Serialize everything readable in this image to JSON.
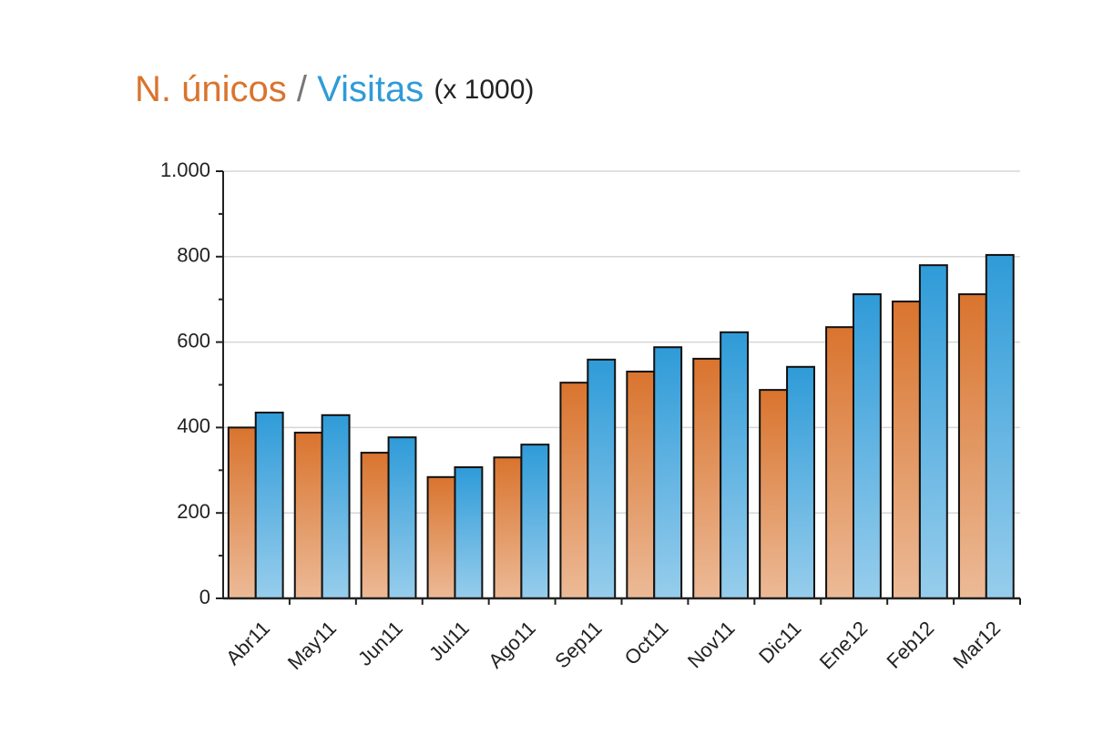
{
  "chart_data": {
    "type": "bar",
    "title_separator": "/",
    "unit_note": "(x 1000)",
    "categories": [
      "Abr11",
      "May11",
      "Jun11",
      "Jul11",
      "Ago11",
      "Sep11",
      "Oct11",
      "Nov11",
      "Dic11",
      "Ene12",
      "Feb12",
      "Mar12"
    ],
    "series": [
      {
        "name": "N. únicos",
        "color": "#d9742e",
        "values": [
          400,
          388,
          341,
          284,
          330,
          505,
          531,
          561,
          488,
          635,
          695,
          712
        ]
      },
      {
        "name": "Visitas",
        "color": "#2f9bd8",
        "values": [
          435,
          429,
          377,
          307,
          360,
          559,
          588,
          623,
          542,
          712,
          780,
          804
        ]
      }
    ],
    "ylim": [
      0,
      1000
    ],
    "yticks": [
      0,
      200,
      400,
      600,
      800,
      {
        "value": 1000,
        "label": "1.000"
      }
    ],
    "yminorticks": [
      100,
      300,
      500,
      700,
      900
    ],
    "grid": true
  }
}
